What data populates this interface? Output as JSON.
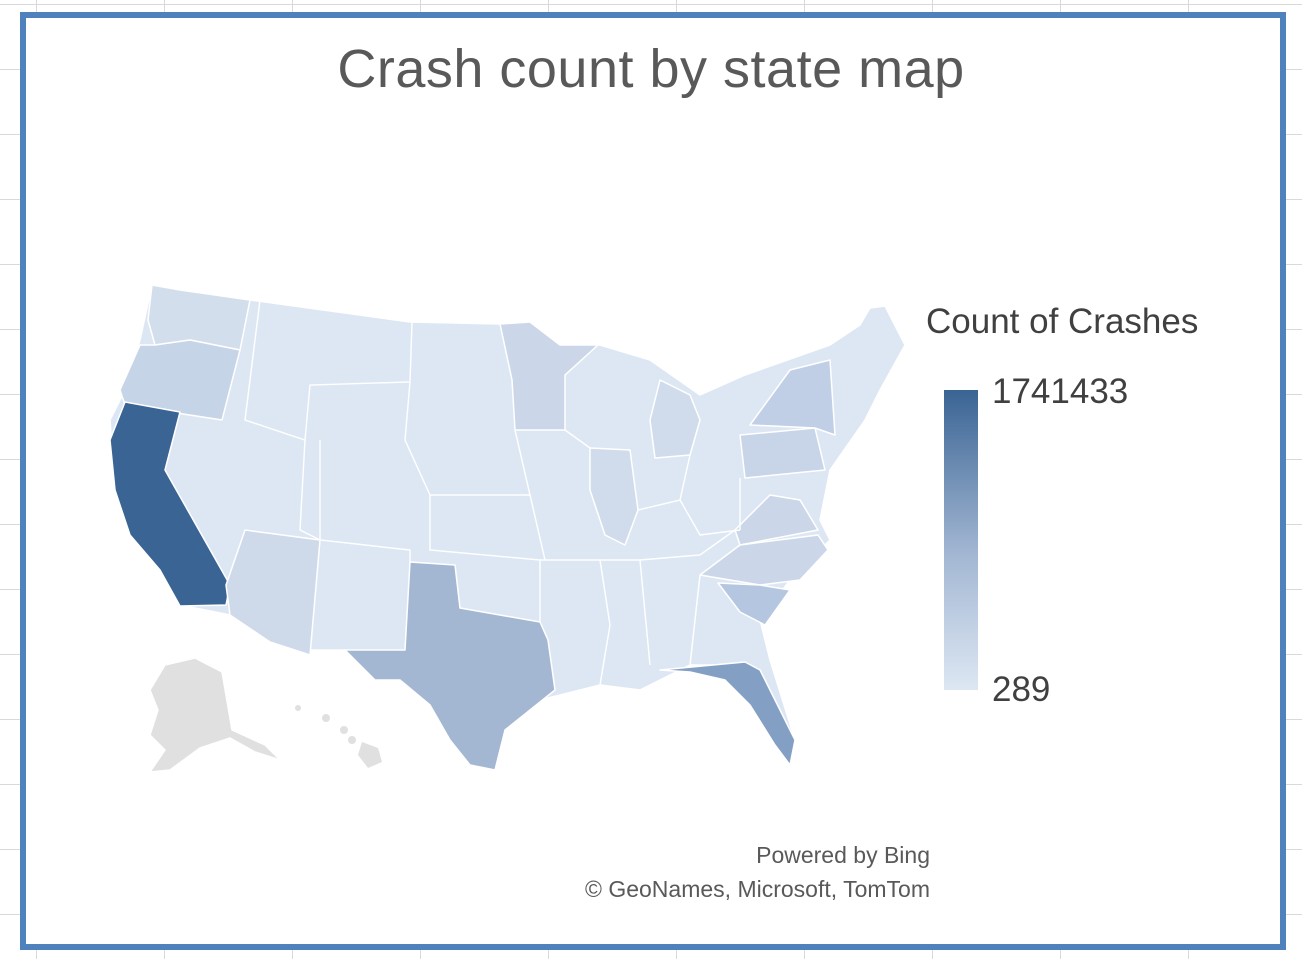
{
  "chart": {
    "title": "Crash count by state map",
    "legend": {
      "title": "Count of Crashes",
      "max_label": "1741433",
      "min_label": "289",
      "color_max": "#3a6494",
      "color_min": "#dde7f3"
    },
    "attribution": {
      "line1": "Powered by Bing",
      "line2": "© GeoNames, Microsoft, TomTom"
    }
  },
  "chart_data": {
    "type": "choropleth",
    "measure": "Count of Crashes",
    "range": [
      289,
      1741433
    ],
    "regions": [
      {
        "name": "California",
        "level": 1.0
      },
      {
        "name": "Florida",
        "level": 0.55
      },
      {
        "name": "Texas",
        "level": 0.4
      },
      {
        "name": "South Carolina",
        "level": 0.22
      },
      {
        "name": "New York",
        "level": 0.2
      },
      {
        "name": "Pennsylvania",
        "level": 0.17
      },
      {
        "name": "Oregon",
        "level": 0.17
      },
      {
        "name": "Minnesota",
        "level": 0.16
      },
      {
        "name": "Virginia",
        "level": 0.15
      },
      {
        "name": "North Carolina",
        "level": 0.15
      },
      {
        "name": "Arizona",
        "level": 0.14
      },
      {
        "name": "Illinois",
        "level": 0.12
      },
      {
        "name": "Michigan",
        "level": 0.12
      },
      {
        "name": "Washington",
        "level": 0.1
      },
      {
        "name": "Alaska",
        "level": null
      },
      {
        "name": "Hawaii",
        "level": null
      }
    ]
  }
}
